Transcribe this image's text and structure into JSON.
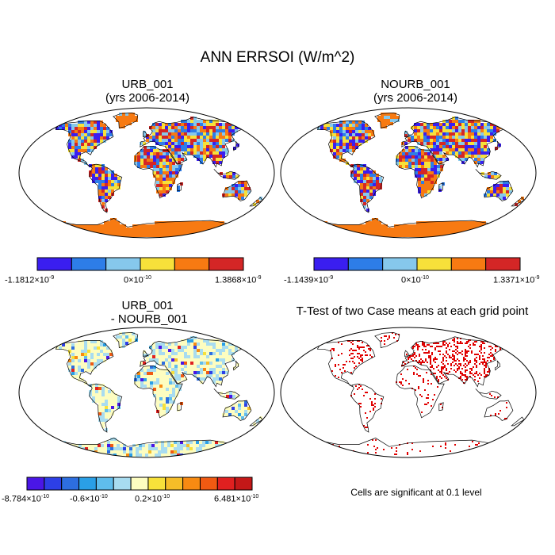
{
  "title": "ANN ERRSOI (W/m^2)",
  "panels": [
    {
      "id": "urb",
      "title_line1": "URB_001",
      "title_line2": "(yrs 2006-2014)",
      "colorbar": {
        "colors": [
          "#3a1ef0",
          "#2d7de8",
          "#86c8ec",
          "#f7e13a",
          "#f77a12",
          "#d42626"
        ],
        "labels": [
          {
            "mant": "-1.1812",
            "exp": "-9"
          },
          {
            "mant": "0",
            "exp": "-10"
          },
          {
            "mant": "1.3868",
            "exp": "-9"
          }
        ]
      }
    },
    {
      "id": "nourb",
      "title_line1": "NOURB_001",
      "title_line2": "(yrs 2006-2014)",
      "colorbar": {
        "colors": [
          "#3a1ef0",
          "#2d7de8",
          "#86c8ec",
          "#f7e13a",
          "#f77a12",
          "#d42626"
        ],
        "labels": [
          {
            "mant": "-1.1439",
            "exp": "-9"
          },
          {
            "mant": "0",
            "exp": "-10"
          },
          {
            "mant": "1.3371",
            "exp": "-9"
          }
        ]
      }
    },
    {
      "id": "diff",
      "title_line1": "URB_001",
      "title_line2": " - NOURB_001",
      "colorbar": {
        "colors": [
          "#4a16e6",
          "#2d3fe6",
          "#2d6ee0",
          "#2a9fe6",
          "#5fbdec",
          "#a8dcf0",
          "#fdfdc0",
          "#f7e13a",
          "#f5bd28",
          "#f78a12",
          "#f05a12",
          "#e02020",
          "#c41818"
        ],
        "labels": [
          {
            "mant": "-8.784",
            "exp": "-10"
          },
          {
            "mant": "-0.6",
            "exp": "-10"
          },
          {
            "mant": "0.2",
            "exp": "-10"
          },
          {
            "mant": "6.481",
            "exp": "-10"
          }
        ]
      }
    },
    {
      "id": "ttest",
      "title_line1": "T-Test of two Case means at each grid point",
      "note": "Cells are significant at 0.1 level",
      "sig_color": "#e00000"
    }
  ]
}
